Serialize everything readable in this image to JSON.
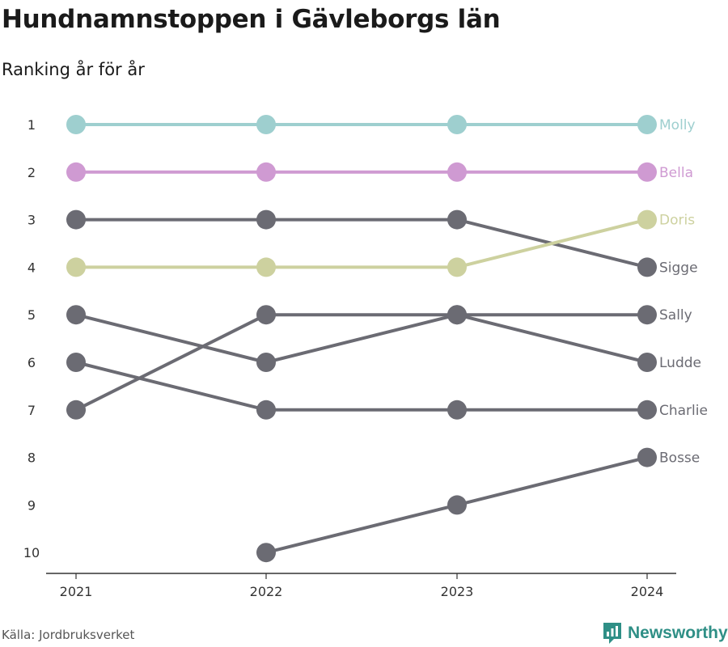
{
  "header": {
    "title": "Hundnamnstoppen i Gävleborgs län",
    "subtitle": "Ranking år för år"
  },
  "footer": {
    "source": "Källa: Jordbruksverket",
    "brand": "Newsworthy"
  },
  "colors": {
    "Molly": "#9ecfcf",
    "Bella": "#cf9ad2",
    "Doris": "#cdd19f",
    "default": "#6b6b73",
    "brand": "#2f8f86"
  },
  "chart_data": {
    "type": "line",
    "subtype": "bump",
    "categories": [
      "2021",
      "2022",
      "2023",
      "2024"
    ],
    "y_ticks": [
      "1",
      "2",
      "3",
      "4",
      "5",
      "6",
      "7",
      "8",
      "9",
      "10"
    ],
    "ylim": [
      1,
      10
    ],
    "y_inverted": true,
    "grid": false,
    "legend": "end-of-line labels",
    "series": [
      {
        "name": "Molly",
        "values": [
          1,
          1,
          1,
          1
        ]
      },
      {
        "name": "Bella",
        "values": [
          2,
          2,
          2,
          2
        ]
      },
      {
        "name": "Sigge",
        "values": [
          3,
          3,
          3,
          4
        ]
      },
      {
        "name": "Doris",
        "values": [
          4,
          4,
          4,
          3
        ]
      },
      {
        "name": "Sally",
        "values": [
          7,
          5,
          5,
          5
        ]
      },
      {
        "name": "Ludde",
        "values": [
          5,
          6,
          5,
          6
        ]
      },
      {
        "name": "Charlie",
        "values": [
          6,
          7,
          7,
          7
        ]
      },
      {
        "name": "Bosse",
        "values": [
          null,
          10,
          9,
          8
        ]
      }
    ]
  }
}
